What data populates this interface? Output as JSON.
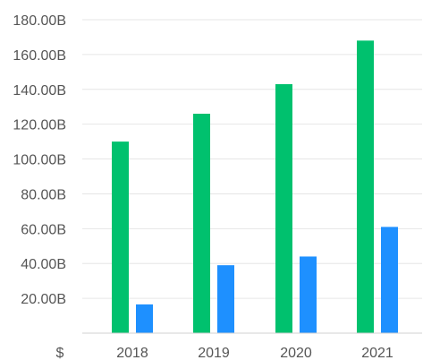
{
  "chart_data": {
    "type": "bar",
    "categories": [
      "2018",
      "2019",
      "2020",
      "2021"
    ],
    "series": [
      {
        "values": [
          110,
          126,
          143,
          168
        ],
        "color": "#00c16e"
      },
      {
        "values": [
          16.5,
          39,
          44,
          61
        ],
        "color": "#1e90ff"
      }
    ],
    "y_tick_values": [
      20,
      40,
      60,
      80,
      100,
      120,
      140,
      160,
      180
    ],
    "y_tick_labels": [
      "20.00B",
      "40.00B",
      "60.00B",
      "80.00B",
      "100.00B",
      "120.00B",
      "140.00B",
      "160.00B",
      "180.00B"
    ],
    "y_unit_label": "$",
    "ylim": [
      0,
      180
    ],
    "grid": true,
    "legend": "none"
  }
}
